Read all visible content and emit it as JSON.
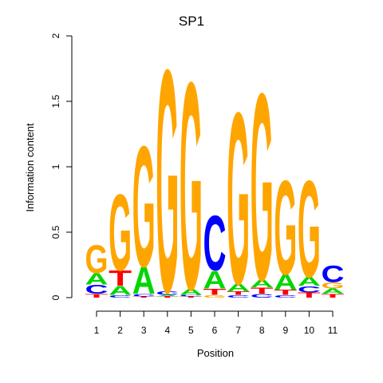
{
  "chart_data": {
    "type": "sequence-logo",
    "title": "SP1",
    "xlabel": "Position",
    "ylabel": "Information content",
    "ylim": [
      0,
      2
    ],
    "yticks": [
      "0",
      "0.5",
      "1",
      "1.5",
      "2"
    ],
    "positions": [
      "1",
      "2",
      "3",
      "4",
      "5",
      "6",
      "7",
      "8",
      "9",
      "10",
      "11"
    ],
    "colors": {
      "A": "#00d600",
      "C": "#0000ff",
      "G": "#ffa500",
      "T": "#ff0000"
    },
    "stacks": [
      [
        {
          "base": "T",
          "height": 0.03
        },
        {
          "base": "C",
          "height": 0.07
        },
        {
          "base": "A",
          "height": 0.09
        },
        {
          "base": "G",
          "height": 0.22
        }
      ],
      [
        {
          "base": "C",
          "height": 0.02
        },
        {
          "base": "A",
          "height": 0.07
        },
        {
          "base": "T",
          "height": 0.12
        },
        {
          "base": "G",
          "height": 0.6
        }
      ],
      [
        {
          "base": "T",
          "height": 0.01
        },
        {
          "base": "C",
          "height": 0.02
        },
        {
          "base": "A",
          "height": 0.21
        },
        {
          "base": "G",
          "height": 0.95
        }
      ],
      [
        {
          "base": "T",
          "height": 0.01
        },
        {
          "base": "A",
          "height": 0.01
        },
        {
          "base": "C",
          "height": 0.03
        },
        {
          "base": "G",
          "height": 1.75
        }
      ],
      [
        {
          "base": "T",
          "height": 0.01
        },
        {
          "base": "C",
          "height": 0.01
        },
        {
          "base": "A",
          "height": 0.05
        },
        {
          "base": "G",
          "height": 1.63
        }
      ],
      [
        {
          "base": "G",
          "height": 0.02
        },
        {
          "base": "T",
          "height": 0.05
        },
        {
          "base": "A",
          "height": 0.14
        },
        {
          "base": "C",
          "height": 0.43
        }
      ],
      [
        {
          "base": "C",
          "height": 0.02
        },
        {
          "base": "T",
          "height": 0.03
        },
        {
          "base": "A",
          "height": 0.06
        },
        {
          "base": "G",
          "height": 1.35
        }
      ],
      [
        {
          "base": "C",
          "height": 0.03
        },
        {
          "base": "T",
          "height": 0.05
        },
        {
          "base": "A",
          "height": 0.06
        },
        {
          "base": "G",
          "height": 1.47
        }
      ],
      [
        {
          "base": "C",
          "height": 0.02
        },
        {
          "base": "T",
          "height": 0.04
        },
        {
          "base": "A",
          "height": 0.12
        },
        {
          "base": "G",
          "height": 0.74
        }
      ],
      [
        {
          "base": "T",
          "height": 0.04
        },
        {
          "base": "C",
          "height": 0.05
        },
        {
          "base": "A",
          "height": 0.07
        },
        {
          "base": "G",
          "height": 0.76
        }
      ],
      [
        {
          "base": "T",
          "height": 0.03
        },
        {
          "base": "A",
          "height": 0.04
        },
        {
          "base": "G",
          "height": 0.05
        },
        {
          "base": "C",
          "height": 0.13
        }
      ]
    ]
  }
}
